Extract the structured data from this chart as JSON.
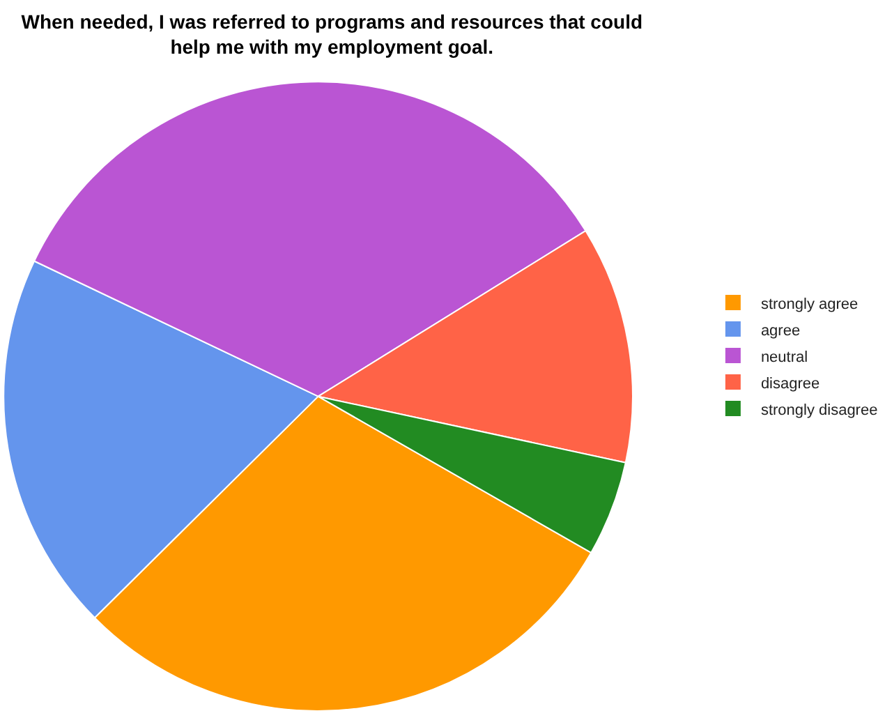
{
  "chart_data": {
    "type": "pie",
    "title": "When needed, I was referred to programs and resources that could help me with my employment goal.",
    "categories": [
      "strongly agree",
      "agree",
      "neutral",
      "disagree",
      "strongly disagree"
    ],
    "values": [
      29.3,
      19.5,
      34.1,
      12.2,
      4.9
    ],
    "colors": [
      "#ff9900",
      "#6495ed",
      "#ba55d3",
      "#ff6347",
      "#228b22"
    ],
    "legend": "right"
  }
}
